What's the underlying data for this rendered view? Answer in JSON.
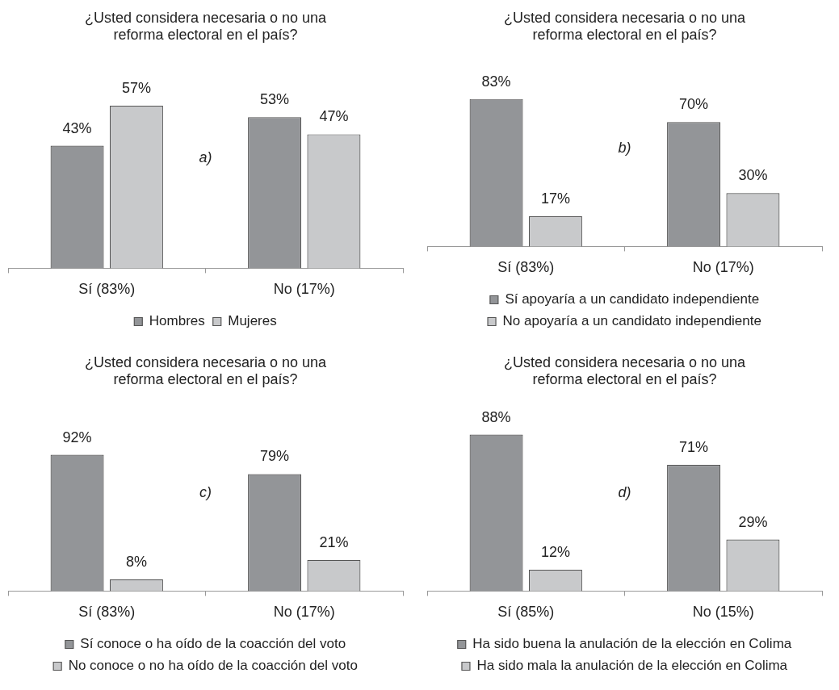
{
  "chart_data": [
    {
      "type": "bar",
      "title": "¿Usted considera necesaria o no una reforma electoral en el país?",
      "categories": [
        "Sí (83%)",
        "No (17%)"
      ],
      "series": [
        {
          "name": "Hombres",
          "color": "#939598",
          "values": [
            43,
            53
          ],
          "value_labels": [
            "43%",
            "53%"
          ]
        },
        {
          "name": "Mujeres",
          "color": "#c8c9cb",
          "values": [
            57,
            47
          ],
          "value_labels": [
            "57%",
            "47%"
          ]
        }
      ],
      "annotations": [
        "a)"
      ],
      "legend": "bottom",
      "tick_labels": "x"
    },
    {
      "type": "bar",
      "title": "¿Usted considera necesaria o no una reforma electoral en el país?",
      "categories": [
        "Sí (83%)",
        "No (17%)"
      ],
      "series": [
        {
          "name": "Sí apoyaría a un candidato independiente",
          "color": "#939598",
          "values": [
            83,
            70
          ],
          "value_labels": [
            "83%",
            "70%"
          ]
        },
        {
          "name": "No apoyaría a un candidato independiente",
          "color": "#c8c9cb",
          "values": [
            17,
            30
          ],
          "value_labels": [
            "17%",
            "30%"
          ]
        }
      ],
      "annotations": [
        "b)"
      ],
      "legend": "bottom",
      "tick_labels": "x"
    },
    {
      "type": "bar",
      "title": "¿Usted considera necesaria o no una reforma electoral en el país?",
      "categories": [
        "Sí (83%)",
        "No (17%)"
      ],
      "series": [
        {
          "name": "Sí conoce o ha oído de la coacción del voto",
          "color": "#939598",
          "values": [
            92,
            79
          ],
          "value_labels": [
            "92%",
            "79%"
          ]
        },
        {
          "name": "No conoce o no ha oído de la coacción del voto",
          "color": "#c8c9cb",
          "values": [
            8,
            21
          ],
          "value_labels": [
            "8%",
            "21%"
          ]
        }
      ],
      "annotations": [
        "c)"
      ],
      "legend": "bottom",
      "tick_labels": "x"
    },
    {
      "type": "bar",
      "title": "¿Usted considera necesaria o no una reforma electoral en el país?",
      "categories": [
        "Sí (85%)",
        "No (15%)"
      ],
      "series": [
        {
          "name": "Ha sido buena la anulación de la elección en Colima",
          "color": "#939598",
          "values": [
            88,
            71
          ],
          "value_labels": [
            "88%",
            "71%"
          ]
        },
        {
          "name": "Ha sido mala la anulación de la elección en Colima",
          "color": "#c8c9cb",
          "values": [
            12,
            29
          ],
          "value_labels": [
            "12%",
            "29%"
          ]
        }
      ],
      "annotations": [
        "d)"
      ],
      "legend": "bottom",
      "tick_labels": "x"
    }
  ]
}
